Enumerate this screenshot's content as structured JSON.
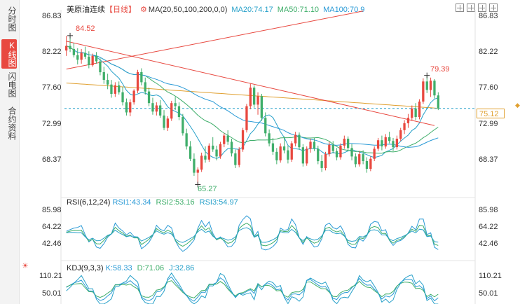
{
  "sidebar": {
    "tabs": [
      {
        "label": "分时图",
        "active": false
      },
      {
        "label": "K线图",
        "active": true
      },
      {
        "label": "闪电图",
        "active": false
      },
      {
        "label": "合约资料",
        "active": false
      }
    ]
  },
  "header": {
    "symbol": "美原油连续",
    "period": "【日线】",
    "settings_icon": "gear-icon",
    "ma_label": "MA(20,50,100,200,0,0)",
    "ma20": "MA20:74.17",
    "ma50": "MA50:71.10",
    "ma100": "MA100:70.9"
  },
  "controls": [
    "zoom-in-icon",
    "zoom-out-icon",
    "expand-icon",
    "fullscreen-icon"
  ],
  "price_axis": {
    "left_ticks": [
      "86.83",
      "82.22",
      "77.60",
      "72.99",
      "68.37"
    ],
    "right_ticks": [
      "86.83",
      "82.22",
      "77.60",
      "72.99",
      "68.37"
    ],
    "current_price": "75.12",
    "high_label": "84.52",
    "low_label": "65.27",
    "recent_high_label": "79.39"
  },
  "rsi": {
    "title": "RSI(6,12,24)",
    "rsi1": "RSI1:43.34",
    "rsi2": "RSI2:53.16",
    "rsi3": "RSI3:54.97",
    "ticks": [
      "85.98",
      "64.22",
      "42.46"
    ]
  },
  "kdj": {
    "settings_icon": "sun-icon",
    "title": "KDJ(9,3,3)",
    "k": "K:58.33",
    "d": "D:71.06",
    "j": "J:32.86",
    "ticks": [
      "110.21",
      "50.01"
    ]
  },
  "colors": {
    "up": "#e8483f",
    "down": "#3fae6a",
    "ma20": "#26a0c9",
    "ma50": "#3fae6a",
    "ma100": "#2a9ad6",
    "ma200": "#e0a030",
    "trendline": "#e8483f"
  },
  "chart_data": {
    "type": "candlestick",
    "title": "美原油连续【日线】",
    "ylim": [
      64.5,
      87.5
    ],
    "candles": [
      {
        "o": 82.6,
        "h": 84.5,
        "l": 81.9,
        "c": 83.2
      },
      {
        "o": 83.2,
        "h": 84.52,
        "l": 82.4,
        "c": 82.8
      },
      {
        "o": 82.8,
        "h": 83.6,
        "l": 81.7,
        "c": 82.0
      },
      {
        "o": 82.0,
        "h": 82.9,
        "l": 80.8,
        "c": 81.4
      },
      {
        "o": 81.4,
        "h": 82.8,
        "l": 80.9,
        "c": 82.3
      },
      {
        "o": 82.3,
        "h": 83.1,
        "l": 81.5,
        "c": 81.8
      },
      {
        "o": 81.8,
        "h": 82.5,
        "l": 80.3,
        "c": 80.7
      },
      {
        "o": 80.7,
        "h": 82.2,
        "l": 80.5,
        "c": 81.9
      },
      {
        "o": 81.9,
        "h": 82.4,
        "l": 80.9,
        "c": 81.2
      },
      {
        "o": 81.2,
        "h": 81.6,
        "l": 79.4,
        "c": 79.8
      },
      {
        "o": 79.8,
        "h": 80.5,
        "l": 78.3,
        "c": 78.8
      },
      {
        "o": 78.8,
        "h": 79.6,
        "l": 77.6,
        "c": 78.2
      },
      {
        "o": 78.2,
        "h": 78.8,
        "l": 76.5,
        "c": 77.0
      },
      {
        "o": 77.0,
        "h": 78.5,
        "l": 76.6,
        "c": 78.1
      },
      {
        "o": 78.1,
        "h": 78.6,
        "l": 76.9,
        "c": 77.2
      },
      {
        "o": 77.2,
        "h": 77.9,
        "l": 75.5,
        "c": 75.9
      },
      {
        "o": 75.9,
        "h": 76.4,
        "l": 74.2,
        "c": 74.6
      },
      {
        "o": 74.6,
        "h": 76.3,
        "l": 74.1,
        "c": 75.9
      },
      {
        "o": 75.9,
        "h": 77.6,
        "l": 75.6,
        "c": 77.4
      },
      {
        "o": 77.4,
        "h": 80.1,
        "l": 77.1,
        "c": 79.8
      },
      {
        "o": 79.8,
        "h": 80.3,
        "l": 78.1,
        "c": 78.5
      },
      {
        "o": 78.5,
        "h": 79.1,
        "l": 76.9,
        "c": 77.3
      },
      {
        "o": 77.3,
        "h": 77.8,
        "l": 75.4,
        "c": 75.8
      },
      {
        "o": 75.8,
        "h": 76.5,
        "l": 74.3,
        "c": 74.7
      },
      {
        "o": 74.7,
        "h": 75.9,
        "l": 74.2,
        "c": 75.5
      },
      {
        "o": 75.5,
        "h": 76.2,
        "l": 73.9,
        "c": 74.2
      },
      {
        "o": 74.2,
        "h": 74.9,
        "l": 72.3,
        "c": 72.6
      },
      {
        "o": 72.6,
        "h": 74.1,
        "l": 72.2,
        "c": 73.8
      },
      {
        "o": 73.8,
        "h": 76.1,
        "l": 73.5,
        "c": 75.8
      },
      {
        "o": 75.8,
        "h": 76.6,
        "l": 74.9,
        "c": 75.4
      },
      {
        "o": 75.4,
        "h": 75.9,
        "l": 73.6,
        "c": 74.0
      },
      {
        "o": 74.0,
        "h": 74.4,
        "l": 71.6,
        "c": 71.9
      },
      {
        "o": 71.9,
        "h": 72.5,
        "l": 69.8,
        "c": 70.2
      },
      {
        "o": 70.2,
        "h": 70.9,
        "l": 68.3,
        "c": 68.6
      },
      {
        "o": 68.6,
        "h": 69.3,
        "l": 66.4,
        "c": 66.8
      },
      {
        "o": 66.8,
        "h": 67.5,
        "l": 65.27,
        "c": 67.2
      },
      {
        "o": 67.2,
        "h": 69.4,
        "l": 66.9,
        "c": 69.0
      },
      {
        "o": 69.0,
        "h": 70.2,
        "l": 68.1,
        "c": 68.5
      },
      {
        "o": 68.5,
        "h": 70.6,
        "l": 68.2,
        "c": 70.3
      },
      {
        "o": 70.3,
        "h": 71.4,
        "l": 69.5,
        "c": 69.8
      },
      {
        "o": 69.8,
        "h": 70.3,
        "l": 68.4,
        "c": 68.9
      },
      {
        "o": 68.9,
        "h": 70.8,
        "l": 68.6,
        "c": 70.5
      },
      {
        "o": 70.5,
        "h": 71.9,
        "l": 70.1,
        "c": 71.6
      },
      {
        "o": 71.6,
        "h": 72.3,
        "l": 70.4,
        "c": 70.8
      },
      {
        "o": 70.8,
        "h": 71.2,
        "l": 68.9,
        "c": 69.3
      },
      {
        "o": 69.3,
        "h": 69.8,
        "l": 67.4,
        "c": 67.8
      },
      {
        "o": 67.8,
        "h": 70.1,
        "l": 67.5,
        "c": 69.8
      },
      {
        "o": 69.8,
        "h": 72.6,
        "l": 69.5,
        "c": 72.3
      },
      {
        "o": 72.3,
        "h": 75.7,
        "l": 72.0,
        "c": 75.4
      },
      {
        "o": 75.4,
        "h": 78.3,
        "l": 75.0,
        "c": 77.8
      },
      {
        "o": 77.8,
        "h": 78.1,
        "l": 75.2,
        "c": 75.6
      },
      {
        "o": 75.6,
        "h": 77.2,
        "l": 74.3,
        "c": 76.7
      },
      {
        "o": 76.7,
        "h": 77.0,
        "l": 73.5,
        "c": 73.9
      },
      {
        "o": 73.9,
        "h": 74.6,
        "l": 71.5,
        "c": 71.9
      },
      {
        "o": 71.9,
        "h": 72.4,
        "l": 70.2,
        "c": 70.6
      },
      {
        "o": 70.6,
        "h": 71.3,
        "l": 69.1,
        "c": 69.5
      },
      {
        "o": 69.5,
        "h": 70.0,
        "l": 67.9,
        "c": 68.4
      },
      {
        "o": 68.4,
        "h": 70.6,
        "l": 68.1,
        "c": 70.2
      },
      {
        "o": 70.2,
        "h": 71.5,
        "l": 69.3,
        "c": 69.7
      },
      {
        "o": 69.7,
        "h": 70.3,
        "l": 68.0,
        "c": 68.5
      },
      {
        "o": 68.5,
        "h": 70.9,
        "l": 68.2,
        "c": 70.6
      },
      {
        "o": 70.6,
        "h": 72.1,
        "l": 70.2,
        "c": 71.7
      },
      {
        "o": 71.7,
        "h": 72.0,
        "l": 69.8,
        "c": 70.1
      },
      {
        "o": 70.1,
        "h": 70.5,
        "l": 67.6,
        "c": 68.0
      },
      {
        "o": 68.0,
        "h": 70.2,
        "l": 67.7,
        "c": 69.9
      },
      {
        "o": 69.9,
        "h": 71.2,
        "l": 69.4,
        "c": 70.8
      },
      {
        "o": 70.8,
        "h": 71.3,
        "l": 69.6,
        "c": 69.9
      },
      {
        "o": 69.9,
        "h": 70.3,
        "l": 67.9,
        "c": 68.3
      },
      {
        "o": 68.3,
        "h": 69.1,
        "l": 66.9,
        "c": 67.4
      },
      {
        "o": 67.4,
        "h": 69.5,
        "l": 67.1,
        "c": 69.2
      },
      {
        "o": 69.2,
        "h": 70.8,
        "l": 68.9,
        "c": 70.4
      },
      {
        "o": 70.4,
        "h": 70.9,
        "l": 69.3,
        "c": 69.6
      },
      {
        "o": 69.6,
        "h": 70.0,
        "l": 68.4,
        "c": 68.8
      },
      {
        "o": 68.8,
        "h": 70.6,
        "l": 68.5,
        "c": 70.3
      },
      {
        "o": 70.3,
        "h": 71.6,
        "l": 69.9,
        "c": 71.2
      },
      {
        "o": 71.2,
        "h": 71.5,
        "l": 69.6,
        "c": 70.0
      },
      {
        "o": 70.0,
        "h": 70.5,
        "l": 68.4,
        "c": 68.9
      },
      {
        "o": 68.9,
        "h": 69.3,
        "l": 67.5,
        "c": 67.9
      },
      {
        "o": 67.9,
        "h": 69.6,
        "l": 67.6,
        "c": 69.2
      },
      {
        "o": 69.2,
        "h": 69.7,
        "l": 67.9,
        "c": 68.3
      },
      {
        "o": 68.3,
        "h": 68.8,
        "l": 66.8,
        "c": 67.3
      },
      {
        "o": 67.3,
        "h": 68.9,
        "l": 67.0,
        "c": 68.6
      },
      {
        "o": 68.6,
        "h": 70.2,
        "l": 68.3,
        "c": 69.9
      },
      {
        "o": 69.9,
        "h": 71.3,
        "l": 69.6,
        "c": 71.0
      },
      {
        "o": 71.0,
        "h": 71.6,
        "l": 69.7,
        "c": 70.2
      },
      {
        "o": 70.2,
        "h": 71.8,
        "l": 69.9,
        "c": 71.4
      },
      {
        "o": 71.4,
        "h": 72.1,
        "l": 70.6,
        "c": 70.9
      },
      {
        "o": 70.9,
        "h": 71.3,
        "l": 69.6,
        "c": 70.1
      },
      {
        "o": 70.1,
        "h": 71.6,
        "l": 69.8,
        "c": 71.2
      },
      {
        "o": 71.2,
        "h": 72.6,
        "l": 70.9,
        "c": 72.3
      },
      {
        "o": 72.3,
        "h": 73.6,
        "l": 71.8,
        "c": 73.2
      },
      {
        "o": 73.2,
        "h": 74.4,
        "l": 72.6,
        "c": 73.9
      },
      {
        "o": 73.9,
        "h": 75.5,
        "l": 73.5,
        "c": 75.1
      },
      {
        "o": 75.1,
        "h": 75.8,
        "l": 73.6,
        "c": 74.0
      },
      {
        "o": 74.0,
        "h": 76.3,
        "l": 73.7,
        "c": 76.0
      },
      {
        "o": 76.0,
        "h": 79.0,
        "l": 75.7,
        "c": 78.6
      },
      {
        "o": 78.6,
        "h": 79.39,
        "l": 77.1,
        "c": 77.5
      },
      {
        "o": 77.5,
        "h": 79.1,
        "l": 76.6,
        "c": 78.7
      },
      {
        "o": 78.7,
        "h": 78.9,
        "l": 76.4,
        "c": 76.8
      },
      {
        "o": 76.8,
        "h": 77.2,
        "l": 74.9,
        "c": 75.12
      }
    ],
    "trendlines": [
      {
        "from": [
          0,
          80.2
        ],
        "to": [
          79,
          87.7
        ],
        "color": "#e8483f"
      },
      {
        "from": [
          0,
          83.8
        ],
        "to": [
          98,
          72.9
        ],
        "color": "#e8483f"
      }
    ],
    "current_price": 75.12,
    "series": [
      {
        "name": "MA20",
        "value": 74.17
      },
      {
        "name": "MA50",
        "value": 71.1
      },
      {
        "name": "MA100",
        "value": 70.9
      }
    ],
    "rsi": {
      "ylim": [
        25,
        100
      ],
      "rsi1": 43.34,
      "rsi2": 53.16,
      "rsi3": 54.97
    },
    "kdj": {
      "ylim": [
        20,
        130
      ],
      "k": 58.33,
      "d": 71.06,
      "j": 32.86
    }
  }
}
